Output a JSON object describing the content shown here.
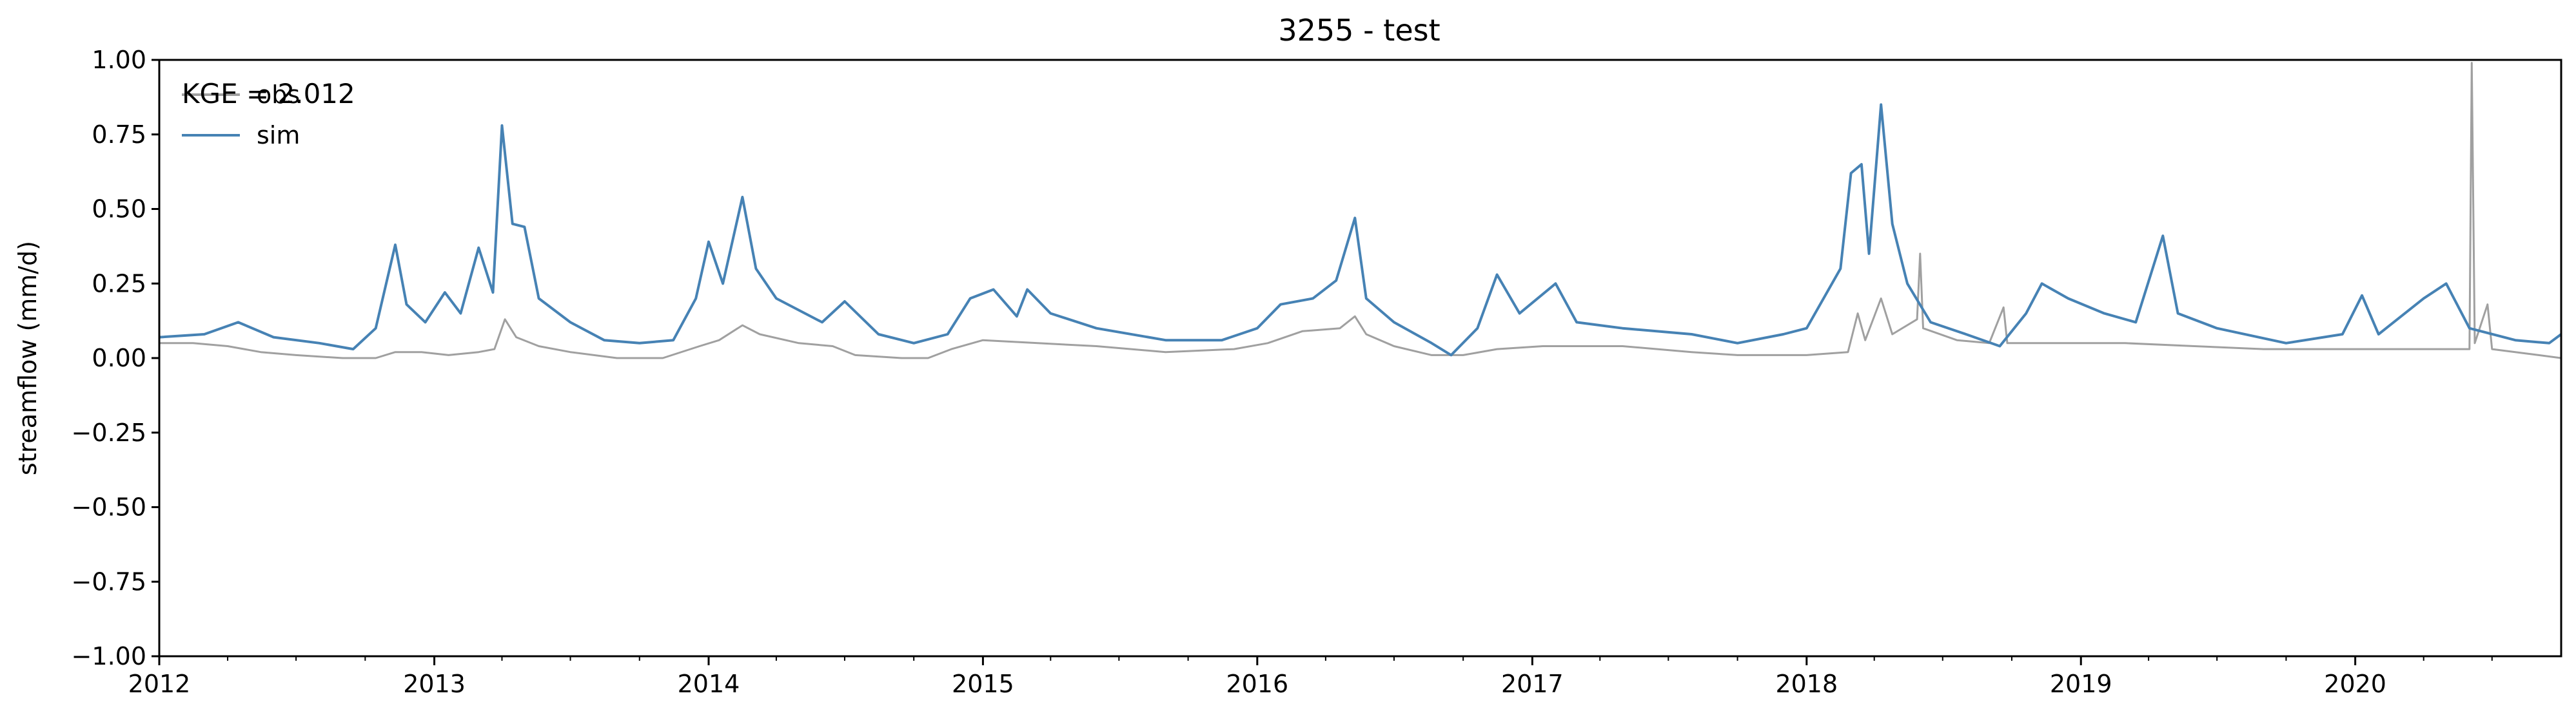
{
  "chart_data": {
    "type": "line",
    "title": "3255 - test",
    "xlabel": "",
    "ylabel": "streamflow (mm/d)",
    "xlim": [
      "2012-01-01",
      "2020-10-01"
    ],
    "ylim": [
      -1.0,
      1.0
    ],
    "x_ticks": [
      "2012",
      "2013",
      "2014",
      "2015",
      "2016",
      "2017",
      "2018",
      "2019",
      "2020"
    ],
    "y_ticks": [
      "1.00",
      "0.75",
      "0.50",
      "0.25",
      "0.00",
      "−0.25",
      "−0.50",
      "−0.75",
      "−1.00"
    ],
    "y_tick_values": [
      1.0,
      0.75,
      0.5,
      0.25,
      0.0,
      -0.25,
      -0.5,
      -0.75,
      -1.0
    ],
    "grid": false,
    "legend_position": "top-left",
    "annotation": "KGE = 2.012",
    "series": [
      {
        "name": "obs",
        "color": "#a0a0a0",
        "points": [
          [
            "2012-01-01",
            0.05
          ],
          [
            "2012-02-15",
            0.05
          ],
          [
            "2012-04-01",
            0.04
          ],
          [
            "2012-05-15",
            0.02
          ],
          [
            "2012-07-01",
            0.01
          ],
          [
            "2012-09-01",
            0.0
          ],
          [
            "2012-10-15",
            0.0
          ],
          [
            "2012-11-10",
            0.02
          ],
          [
            "2012-12-15",
            0.02
          ],
          [
            "2013-01-20",
            0.01
          ],
          [
            "2013-03-01",
            0.02
          ],
          [
            "2013-03-22",
            0.03
          ],
          [
            "2013-04-05",
            0.13
          ],
          [
            "2013-04-20",
            0.07
          ],
          [
            "2013-05-20",
            0.04
          ],
          [
            "2013-07-01",
            0.02
          ],
          [
            "2013-09-01",
            0.0
          ],
          [
            "2013-11-01",
            0.0
          ],
          [
            "2013-12-20",
            0.04
          ],
          [
            "2014-01-15",
            0.06
          ],
          [
            "2014-02-15",
            0.11
          ],
          [
            "2014-03-10",
            0.08
          ],
          [
            "2014-05-01",
            0.05
          ],
          [
            "2014-06-15",
            0.04
          ],
          [
            "2014-07-15",
            0.01
          ],
          [
            "2014-09-15",
            0.0
          ],
          [
            "2014-10-20",
            0.0
          ],
          [
            "2014-11-20",
            0.03
          ],
          [
            "2015-01-01",
            0.06
          ],
          [
            "2015-03-15",
            0.05
          ],
          [
            "2015-06-01",
            0.04
          ],
          [
            "2015-09-01",
            0.02
          ],
          [
            "2015-12-01",
            0.03
          ],
          [
            "2016-01-15",
            0.05
          ],
          [
            "2016-03-01",
            0.09
          ],
          [
            "2016-04-20",
            0.1
          ],
          [
            "2016-05-10",
            0.14
          ],
          [
            "2016-05-25",
            0.08
          ],
          [
            "2016-07-01",
            0.04
          ],
          [
            "2016-08-20",
            0.01
          ],
          [
            "2016-10-01",
            0.01
          ],
          [
            "2016-11-15",
            0.03
          ],
          [
            "2017-01-15",
            0.04
          ],
          [
            "2017-05-01",
            0.04
          ],
          [
            "2017-08-01",
            0.02
          ],
          [
            "2017-10-01",
            0.01
          ],
          [
            "2018-01-01",
            0.01
          ],
          [
            "2018-02-25",
            0.02
          ],
          [
            "2018-03-10",
            0.15
          ],
          [
            "2018-03-20",
            0.06
          ],
          [
            "2018-04-10",
            0.2
          ],
          [
            "2018-04-25",
            0.08
          ],
          [
            "2018-05-28",
            0.13
          ],
          [
            "2018-06-01",
            0.35
          ],
          [
            "2018-06-05",
            0.1
          ],
          [
            "2018-07-20",
            0.06
          ],
          [
            "2018-09-01",
            0.05
          ],
          [
            "2018-09-20",
            0.17
          ],
          [
            "2018-09-25",
            0.05
          ],
          [
            "2018-11-15",
            0.05
          ],
          [
            "2019-03-01",
            0.05
          ],
          [
            "2019-06-01",
            0.04
          ],
          [
            "2019-09-01",
            0.03
          ],
          [
            "2020-01-01",
            0.03
          ],
          [
            "2020-05-01",
            0.03
          ],
          [
            "2020-06-01",
            0.03
          ],
          [
            "2020-06-04",
            0.99
          ],
          [
            "2020-06-08",
            0.05
          ],
          [
            "2020-06-25",
            0.18
          ],
          [
            "2020-07-01",
            0.03
          ],
          [
            "2020-09-01",
            0.01
          ],
          [
            "2020-10-01",
            0.0
          ]
        ]
      },
      {
        "name": "sim",
        "color": "#4682b4",
        "points": [
          [
            "2012-01-01",
            0.07
          ],
          [
            "2012-03-01",
            0.08
          ],
          [
            "2012-04-15",
            0.12
          ],
          [
            "2012-06-01",
            0.07
          ],
          [
            "2012-08-01",
            0.05
          ],
          [
            "2012-09-15",
            0.03
          ],
          [
            "2012-10-15",
            0.1
          ],
          [
            "2012-11-10",
            0.38
          ],
          [
            "2012-11-25",
            0.18
          ],
          [
            "2012-12-20",
            0.12
          ],
          [
            "2013-01-15",
            0.22
          ],
          [
            "2013-02-05",
            0.15
          ],
          [
            "2013-03-01",
            0.37
          ],
          [
            "2013-03-20",
            0.22
          ],
          [
            "2013-04-01",
            0.78
          ],
          [
            "2013-04-15",
            0.45
          ],
          [
            "2013-05-01",
            0.44
          ],
          [
            "2013-05-20",
            0.2
          ],
          [
            "2013-07-01",
            0.12
          ],
          [
            "2013-08-15",
            0.06
          ],
          [
            "2013-10-01",
            0.05
          ],
          [
            "2013-11-15",
            0.06
          ],
          [
            "2013-12-15",
            0.2
          ],
          [
            "2014-01-01",
            0.39
          ],
          [
            "2014-01-20",
            0.25
          ],
          [
            "2014-02-15",
            0.54
          ],
          [
            "2014-03-05",
            0.3
          ],
          [
            "2014-04-01",
            0.2
          ],
          [
            "2014-06-01",
            0.12
          ],
          [
            "2014-07-01",
            0.19
          ],
          [
            "2014-08-15",
            0.08
          ],
          [
            "2014-10-01",
            0.05
          ],
          [
            "2014-11-15",
            0.08
          ],
          [
            "2014-12-15",
            0.2
          ],
          [
            "2015-01-15",
            0.23
          ],
          [
            "2015-02-15",
            0.14
          ],
          [
            "2015-03-01",
            0.23
          ],
          [
            "2015-04-01",
            0.15
          ],
          [
            "2015-06-01",
            0.1
          ],
          [
            "2015-09-01",
            0.06
          ],
          [
            "2015-11-15",
            0.06
          ],
          [
            "2016-01-01",
            0.1
          ],
          [
            "2016-02-01",
            0.18
          ],
          [
            "2016-03-15",
            0.2
          ],
          [
            "2016-04-15",
            0.26
          ],
          [
            "2016-05-10",
            0.47
          ],
          [
            "2016-05-25",
            0.2
          ],
          [
            "2016-07-01",
            0.12
          ],
          [
            "2016-08-20",
            0.05
          ],
          [
            "2016-09-15",
            0.01
          ],
          [
            "2016-10-20",
            0.1
          ],
          [
            "2016-11-15",
            0.28
          ],
          [
            "2016-12-15",
            0.15
          ],
          [
            "2017-02-01",
            0.25
          ],
          [
            "2017-03-01",
            0.12
          ],
          [
            "2017-05-01",
            0.1
          ],
          [
            "2017-08-01",
            0.08
          ],
          [
            "2017-10-01",
            0.05
          ],
          [
            "2017-12-01",
            0.08
          ],
          [
            "2018-01-01",
            0.1
          ],
          [
            "2018-02-15",
            0.3
          ],
          [
            "2018-03-01",
            0.62
          ],
          [
            "2018-03-15",
            0.65
          ],
          [
            "2018-03-25",
            0.35
          ],
          [
            "2018-04-10",
            0.85
          ],
          [
            "2018-04-25",
            0.45
          ],
          [
            "2018-05-15",
            0.25
          ],
          [
            "2018-06-15",
            0.12
          ],
          [
            "2018-08-01",
            0.08
          ],
          [
            "2018-09-15",
            0.04
          ],
          [
            "2018-10-20",
            0.15
          ],
          [
            "2018-11-10",
            0.25
          ],
          [
            "2018-12-15",
            0.2
          ],
          [
            "2019-02-01",
            0.15
          ],
          [
            "2019-03-15",
            0.12
          ],
          [
            "2019-04-20",
            0.41
          ],
          [
            "2019-05-10",
            0.15
          ],
          [
            "2019-07-01",
            0.1
          ],
          [
            "2019-10-01",
            0.05
          ],
          [
            "2019-12-15",
            0.08
          ],
          [
            "2020-01-10",
            0.21
          ],
          [
            "2020-02-01",
            0.08
          ],
          [
            "2020-04-01",
            0.2
          ],
          [
            "2020-05-01",
            0.25
          ],
          [
            "2020-06-01",
            0.1
          ],
          [
            "2020-08-01",
            0.06
          ],
          [
            "2020-09-15",
            0.05
          ],
          [
            "2020-10-01",
            0.08
          ]
        ]
      }
    ]
  }
}
